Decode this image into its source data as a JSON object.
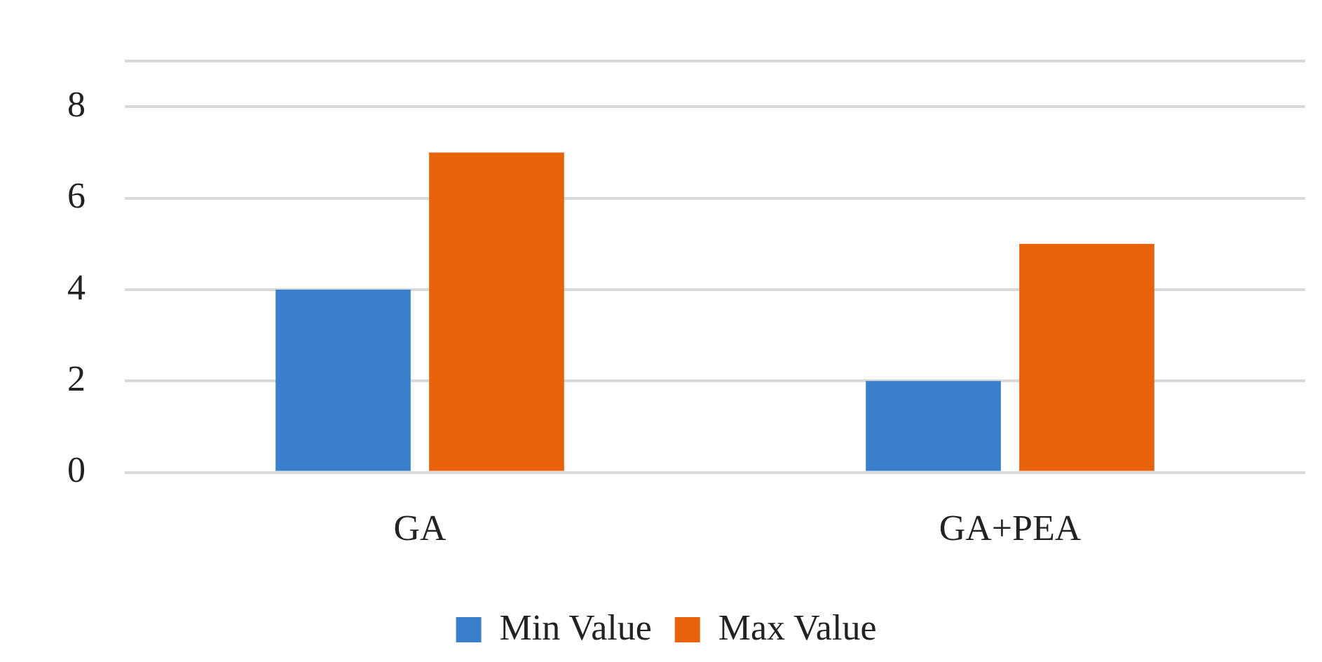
{
  "chart_data": {
    "type": "bar",
    "categories": [
      "GA",
      "GA+PEA"
    ],
    "series": [
      {
        "name": "Min Value",
        "color": "#3a7fcc",
        "values": [
          4,
          2
        ]
      },
      {
        "name": "Max Value",
        "color": "#e8620c",
        "values": [
          7,
          5
        ]
      }
    ],
    "ylim": [
      0,
      9
    ],
    "yticks": [
      0,
      2,
      4,
      6,
      8,
      {
        "value": 9,
        "label": null
      }
    ],
    "grid": "y",
    "legend": "bottom"
  }
}
